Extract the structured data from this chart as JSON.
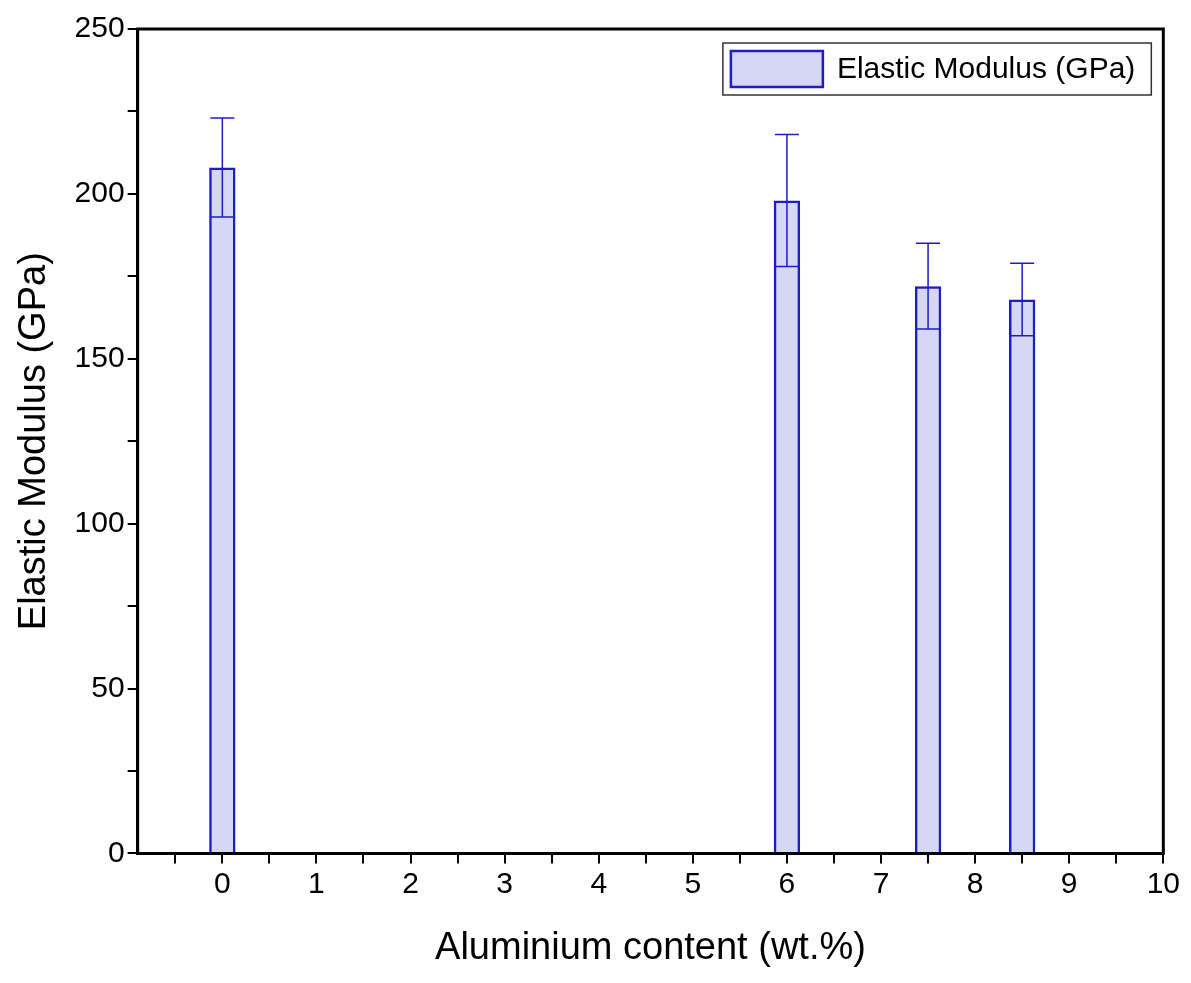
{
  "chart_data": {
    "type": "bar",
    "xlabel": "Aluminium content (wt.%)",
    "ylabel": "Elastic Modulus (GPa)",
    "x": [
      0,
      6,
      7.5,
      8.5
    ],
    "series": [
      {
        "name": "Elastic Modulus (GPa)",
        "color": "#1c1cc8",
        "values": [
          208,
          198,
          172,
          168
        ],
        "errors": [
          15,
          20,
          13,
          11
        ]
      }
    ],
    "xlim": [
      -0.9,
      10
    ],
    "xticks": [
      {
        "value": -0.5,
        "label": null
      },
      0,
      {
        "value": 0.5,
        "label": null
      },
      1,
      {
        "value": 1.5,
        "label": null
      },
      2,
      {
        "value": 2.5,
        "label": null
      },
      3,
      {
        "value": 3.5,
        "label": null
      },
      4,
      {
        "value": 4.5,
        "label": null
      },
      5,
      {
        "value": 5.5,
        "label": null
      },
      6,
      {
        "value": 6.5,
        "label": null
      },
      7,
      {
        "value": 7.5,
        "label": null
      },
      8,
      {
        "value": 8.5,
        "label": null
      },
      9,
      {
        "value": 9.5,
        "label": null
      },
      10
    ],
    "ylim": [
      0,
      250
    ],
    "yticks": [
      0,
      {
        "value": 25,
        "label": null
      },
      50,
      {
        "value": 75,
        "label": null
      },
      100,
      {
        "value": 125,
        "label": null
      },
      150,
      {
        "value": 175,
        "label": null
      },
      200,
      {
        "value": 225,
        "label": null
      },
      250
    ],
    "grid": false,
    "legend": "top right"
  }
}
